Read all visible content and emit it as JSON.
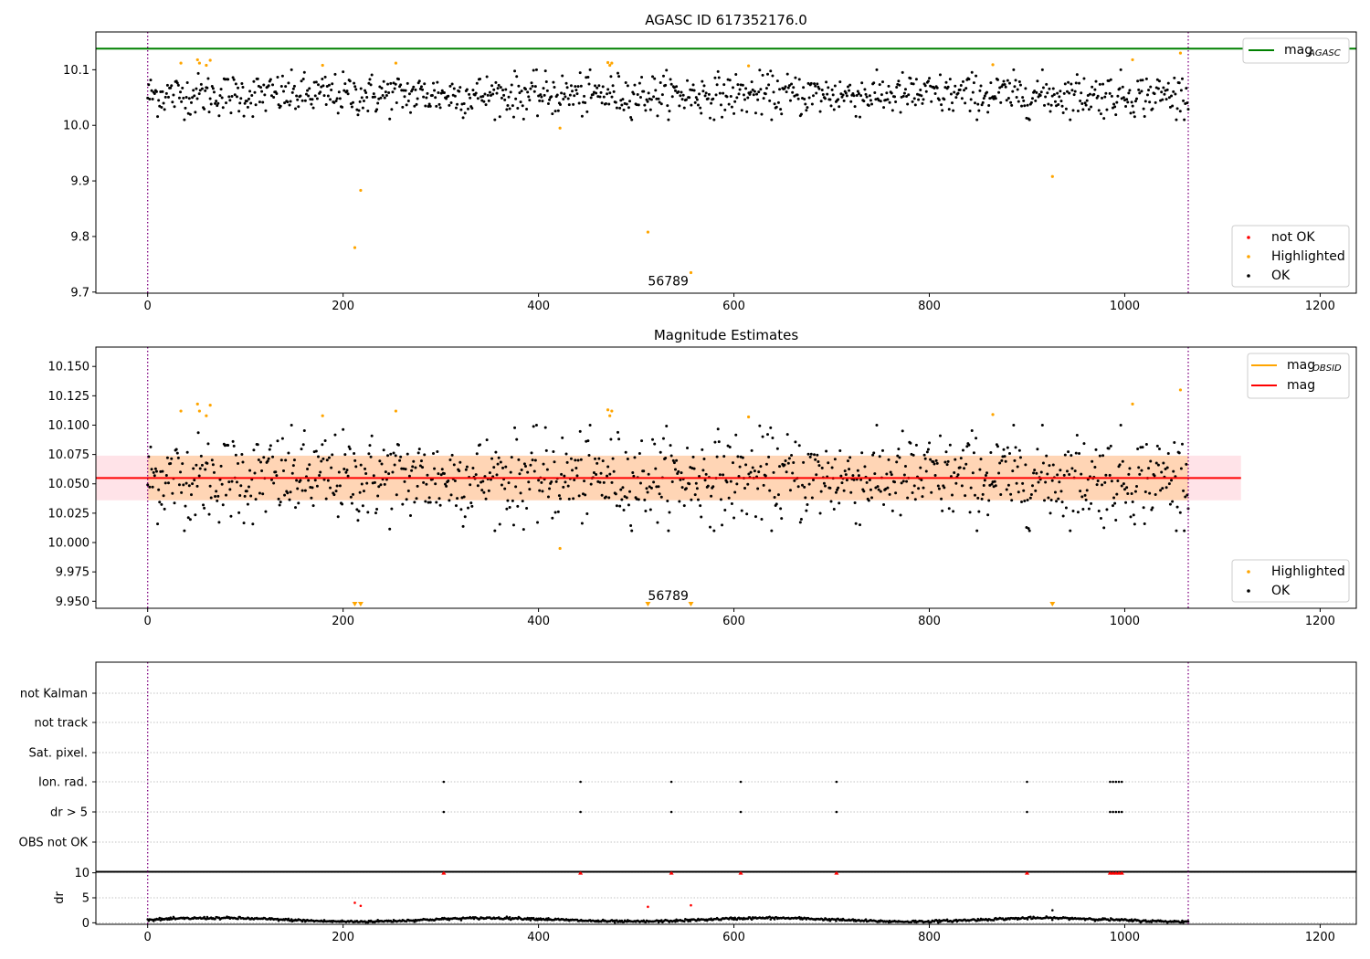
{
  "chart_data": [
    {
      "type": "scatter",
      "title": "AGASC ID 617352176.0",
      "xlabel": "",
      "ylabel": "",
      "xlim": [
        -53,
        1237
      ],
      "ylim": [
        9.698,
        10.168
      ],
      "xticks": [
        0,
        200,
        400,
        600,
        800,
        1000,
        1200
      ],
      "xtick_labels": [
        "0",
        "200",
        "400",
        "600",
        "800",
        "1000",
        "1200"
      ],
      "yticks": [
        9.7,
        9.8,
        9.9,
        10.0,
        10.1
      ],
      "ytick_labels": [
        "9.7",
        "9.8",
        "9.9",
        "10.0",
        "10.1"
      ],
      "vlines": [
        0,
        1065
      ],
      "hline": {
        "y": 10.138,
        "color": "#008000"
      },
      "legend_upper": {
        "placement": "top-right",
        "label": "mag",
        "subscript": "AGASC"
      },
      "legend_lower": {
        "placement": "bottom-right",
        "entries": [
          {
            "label": "not OK",
            "color": "#ff0000"
          },
          {
            "label": "Highlighted",
            "color": "#ffa500"
          },
          {
            "label": "OK",
            "color": "#000000"
          }
        ]
      },
      "annotation": {
        "text": "56789",
        "x": 512,
        "y": 9.712
      },
      "ok_points": {
        "n": 1050,
        "x_range": [
          0,
          1065
        ],
        "mean": 10.055,
        "spread": 0.019
      },
      "highlighted": [
        {
          "x": 34,
          "y": 10.112
        },
        {
          "x": 51,
          "y": 10.118
        },
        {
          "x": 53,
          "y": 10.112
        },
        {
          "x": 60,
          "y": 10.108
        },
        {
          "x": 64,
          "y": 10.117
        },
        {
          "x": 179,
          "y": 10.108
        },
        {
          "x": 212,
          "y": 9.78
        },
        {
          "x": 218,
          "y": 9.883
        },
        {
          "x": 254,
          "y": 10.112
        },
        {
          "x": 422,
          "y": 9.995
        },
        {
          "x": 471,
          "y": 10.113
        },
        {
          "x": 473,
          "y": 10.108
        },
        {
          "x": 475,
          "y": 10.112
        },
        {
          "x": 512,
          "y": 9.808
        },
        {
          "x": 556,
          "y": 9.735
        },
        {
          "x": 615,
          "y": 10.107
        },
        {
          "x": 865,
          "y": 10.109
        },
        {
          "x": 926,
          "y": 9.908
        },
        {
          "x": 1008,
          "y": 10.118
        },
        {
          "x": 1057,
          "y": 10.13
        }
      ]
    },
    {
      "type": "scatter",
      "title": "Magnitude Estimates",
      "xlabel": "",
      "ylabel": "",
      "xlim": [
        -53,
        1237
      ],
      "ylim": [
        9.944,
        10.1665
      ],
      "xticks": [
        0,
        200,
        400,
        600,
        800,
        1000,
        1200
      ],
      "xtick_labels": [
        "0",
        "200",
        "400",
        "600",
        "800",
        "1000",
        "1200"
      ],
      "yticks": [
        9.95,
        9.975,
        10.0,
        10.025,
        10.05,
        10.075,
        10.1,
        10.125,
        10.15
      ],
      "ytick_labels": [
        "9.950",
        "9.975",
        "10.000",
        "10.025",
        "10.050",
        "10.075",
        "10.100",
        "10.125",
        "10.150"
      ],
      "vlines": [
        0,
        1065
      ],
      "mag_line": {
        "y": 10.055,
        "x_range": [
          -53,
          1119
        ],
        "color": "#ff0000"
      },
      "mag_band": {
        "y_range": [
          10.036,
          10.074
        ],
        "x_range": [
          -53,
          1119
        ],
        "color": "#ffc0cb"
      },
      "obsid_band": {
        "y_range": [
          10.036,
          10.074
        ],
        "x_range": [
          0,
          1065
        ],
        "color": "#ffa500"
      },
      "legend_upper": {
        "placement": "top-right",
        "entries": [
          {
            "label": "mag",
            "subscript": "OBSID",
            "color": "#ffa500"
          },
          {
            "label": "mag",
            "subscript": "",
            "color": "#ff0000"
          }
        ]
      },
      "legend_lower": {
        "placement": "bottom-right",
        "entries": [
          {
            "label": "Highlighted",
            "color": "#ffa500"
          },
          {
            "label": "OK",
            "color": "#000000"
          }
        ]
      },
      "annotation": {
        "text": "56789",
        "x": 512,
        "y": 9.951
      },
      "out_of_range_markers_x": [
        212,
        218,
        512,
        556,
        926
      ],
      "ok_points": {
        "n": 1050,
        "x_range": [
          0,
          1065
        ],
        "mean": 10.055,
        "spread": 0.019
      }
    },
    {
      "type": "scatter",
      "title": "",
      "xlim": [
        -53,
        1237
      ],
      "categories": [
        "not Kalman",
        "not track",
        "Sat. pixel.",
        "Ion. rad.",
        "dr > 5",
        "OBS not OK"
      ],
      "vlines": [
        0,
        1065
      ],
      "flag_points": [
        {
          "category": "Ion. rad.",
          "x": [
            303,
            443,
            536,
            607,
            705,
            900,
            985,
            988,
            991,
            994,
            997
          ]
        },
        {
          "category": "dr > 5",
          "x": [
            303,
            443,
            536,
            607,
            705,
            900,
            985,
            988,
            991,
            994,
            997
          ]
        }
      ]
    },
    {
      "type": "scatter",
      "title": "",
      "ylabel": "dr",
      "xlim": [
        -53,
        1237
      ],
      "ylim": [
        -0.3,
        10.3
      ],
      "xticks": [
        0,
        200,
        400,
        600,
        800,
        1000,
        1200
      ],
      "xtick_labels": [
        "0",
        "200",
        "400",
        "600",
        "800",
        "1000",
        "1200"
      ],
      "yticks": [
        0,
        5,
        10
      ],
      "ytick_labels": [
        "0",
        "5",
        "10"
      ],
      "vlines": [
        0,
        1065
      ],
      "clipped_x": [
        303,
        443,
        536,
        607,
        705,
        900,
        985,
        988,
        991,
        994,
        997
      ],
      "clipped_value": 10,
      "red_points": [
        {
          "x": 212,
          "y": 4.0
        },
        {
          "x": 218,
          "y": 3.4
        },
        {
          "x": 512,
          "y": 3.2
        },
        {
          "x": 556,
          "y": 3.5
        }
      ],
      "ok_points": {
        "n": 1050,
        "x_range": [
          0,
          1065
        ],
        "typical": 0.6
      },
      "extra_points": [
        {
          "x": 926,
          "y": 2.5
        }
      ]
    }
  ]
}
